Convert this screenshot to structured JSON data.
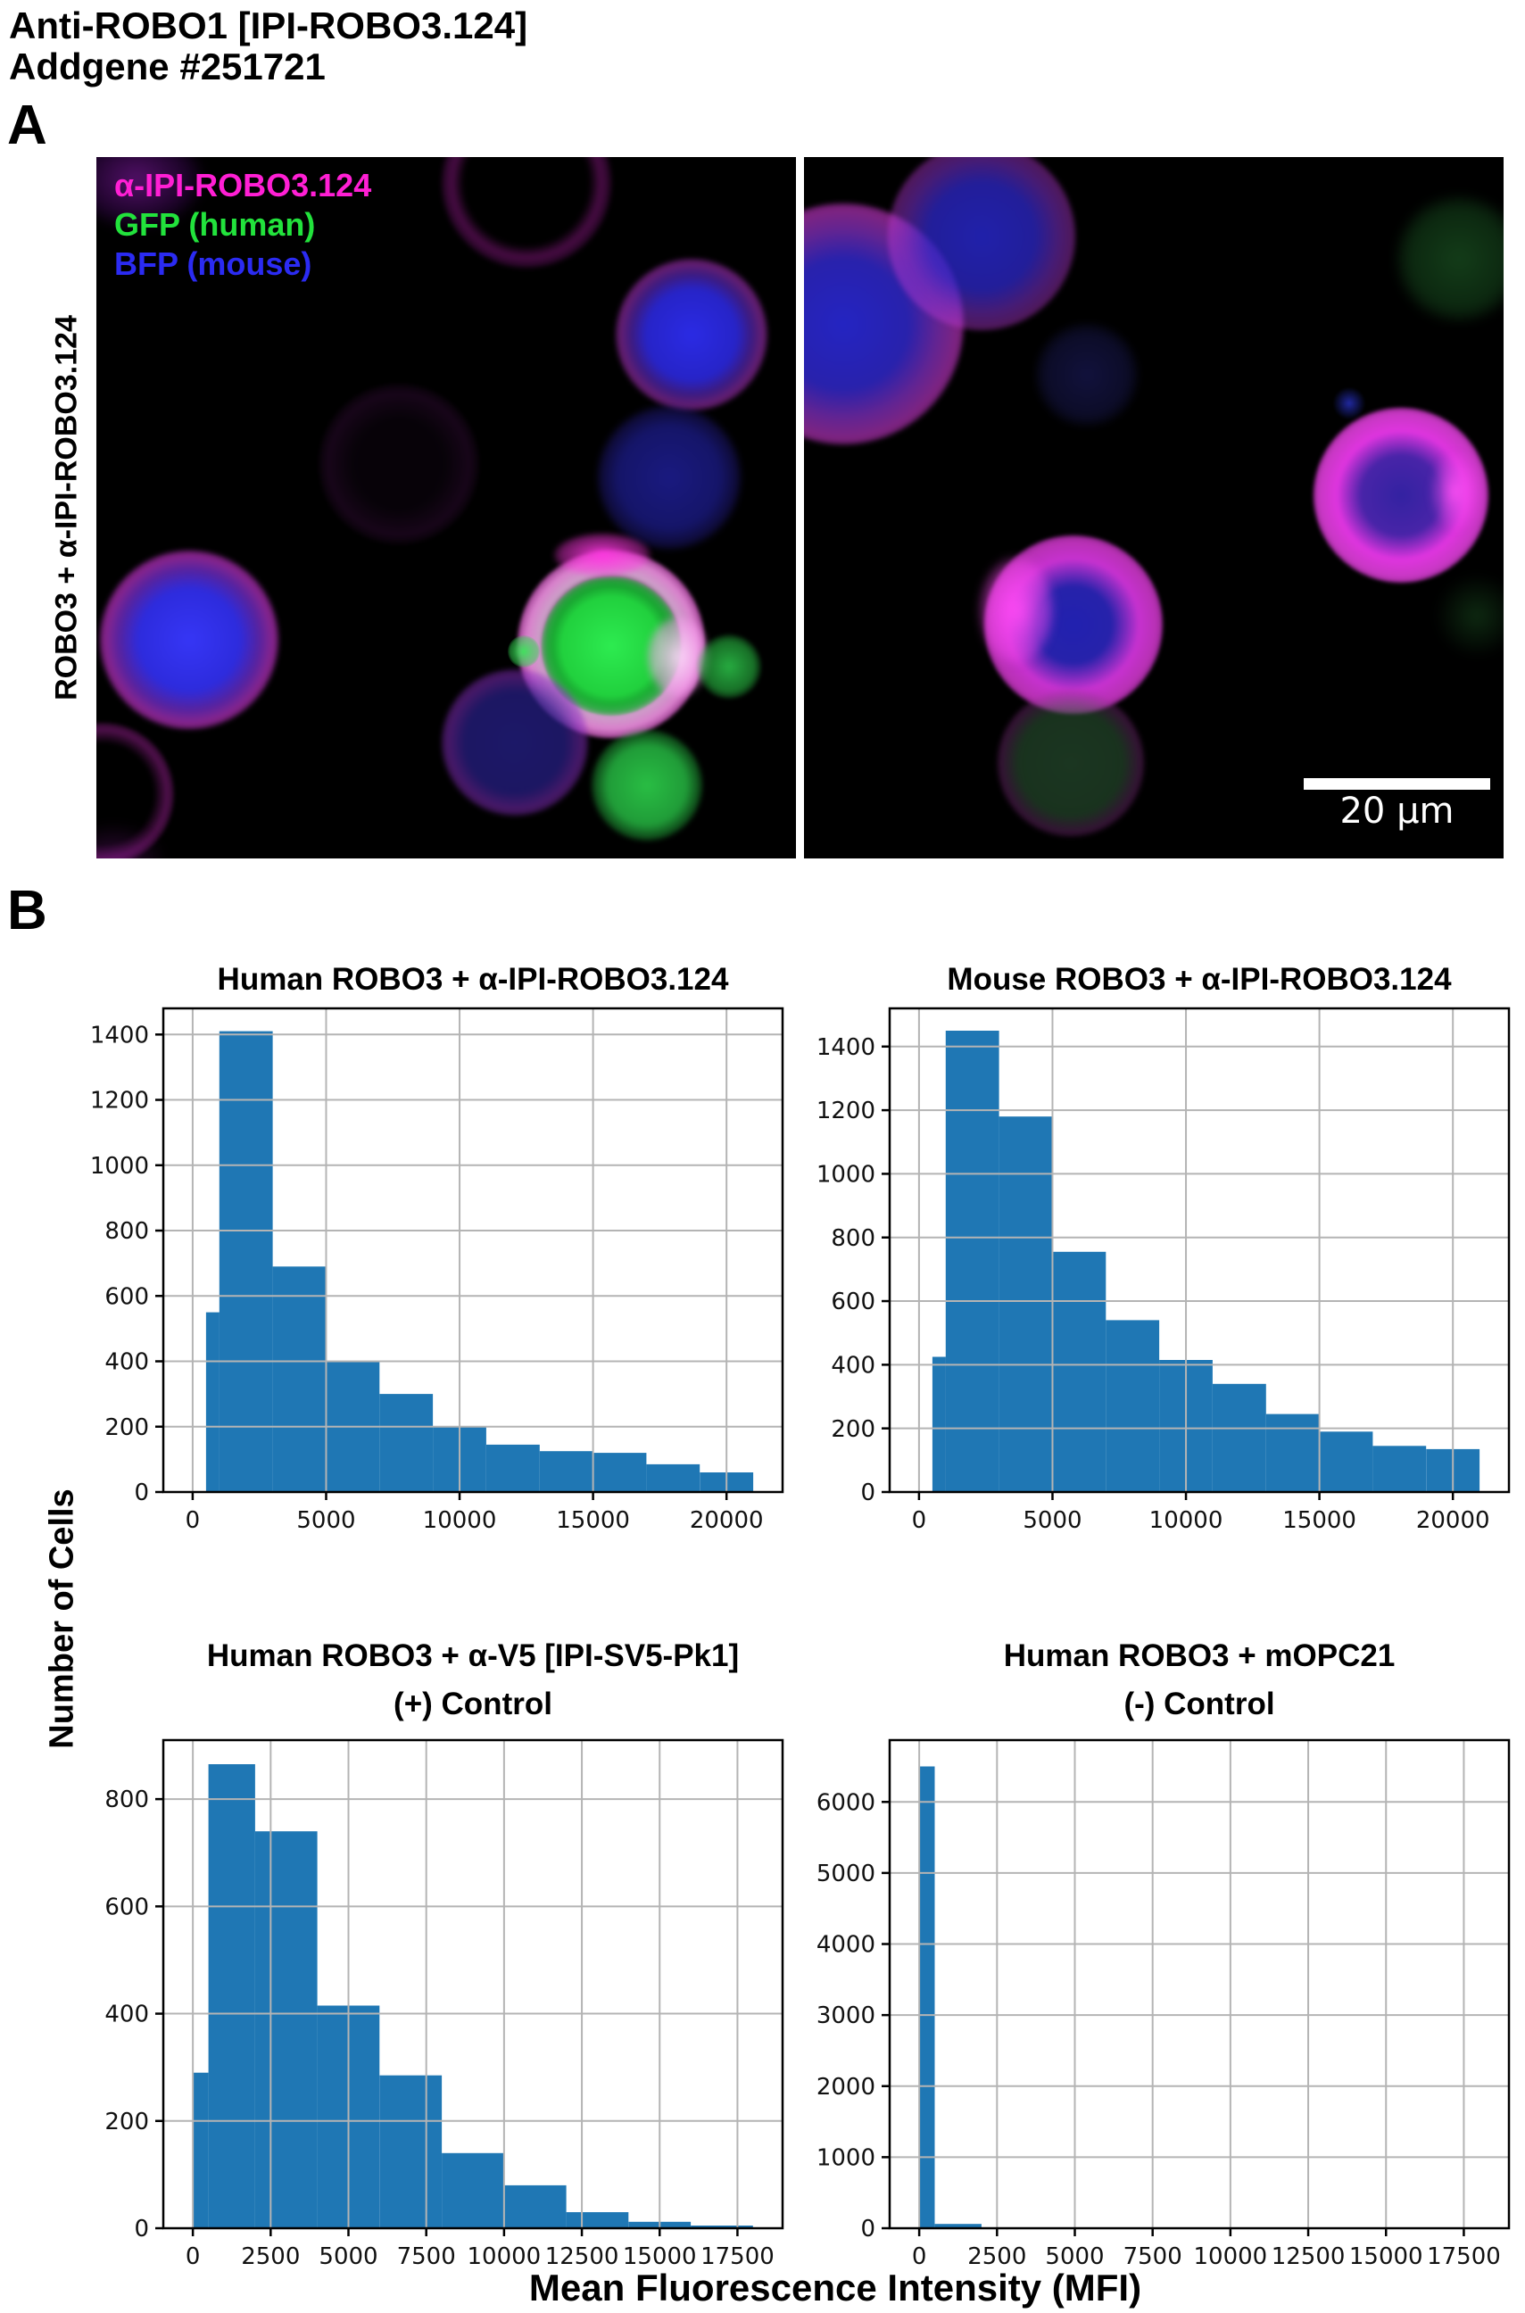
{
  "header": {
    "line1": "Anti-ROBO1 [IPI-ROBO3.124]",
    "line2": "Addgene #251721"
  },
  "panel_a": {
    "label": "A",
    "row_label": "ROBO3 + α-IPI-ROBO3.124",
    "legend": [
      {
        "text": "α-IPI-ROBO3.124",
        "color": "#ff1fd4"
      },
      {
        "text": "GFP (human)",
        "color": "#22e23c"
      },
      {
        "text": "BFP (mouse)",
        "color": "#2b2bf2"
      }
    ],
    "scale_bar_text": "20 µm"
  },
  "panel_b": {
    "label": "B",
    "ylabel": "Number of Cells",
    "xlabel": "Mean Fluorescence Intensity (MFI)"
  },
  "colors": {
    "bar": "#1f77b4",
    "grid": "#b4b4b4",
    "frame": "#000000",
    "tick_label": "#111111"
  },
  "chart_data": [
    {
      "type": "bar",
      "title": "Human ROBO3 + α-IPI-ROBO3.124",
      "xlabel": "Mean Fluorescence Intensity (MFI)",
      "ylabel": "Number of Cells",
      "xlim": [
        -1100,
        22100
      ],
      "ylim": [
        0,
        1480
      ],
      "xticks": [
        0,
        5000,
        10000,
        15000,
        20000
      ],
      "yticks": [
        0,
        200,
        400,
        600,
        800,
        1000,
        1200,
        1400
      ],
      "grid": true,
      "bars": [
        [
          500,
          1000,
          550
        ],
        [
          1000,
          3000,
          1410
        ],
        [
          3000,
          5000,
          690
        ],
        [
          5000,
          7000,
          400
        ],
        [
          7000,
          9000,
          300
        ],
        [
          9000,
          11000,
          200
        ],
        [
          11000,
          13000,
          145
        ],
        [
          13000,
          15000,
          125
        ],
        [
          15000,
          17000,
          120
        ],
        [
          17000,
          19000,
          85
        ],
        [
          19000,
          21000,
          60
        ]
      ]
    },
    {
      "type": "bar",
      "title": "Mouse ROBO3 + α-IPI-ROBO3.124",
      "xlabel": "Mean Fluorescence Intensity (MFI)",
      "ylabel": "Number of Cells",
      "xlim": [
        -1100,
        22100
      ],
      "ylim": [
        0,
        1520
      ],
      "xticks": [
        0,
        5000,
        10000,
        15000,
        20000
      ],
      "yticks": [
        0,
        200,
        400,
        600,
        800,
        1000,
        1200,
        1400
      ],
      "grid": true,
      "bars": [
        [
          500,
          1000,
          425
        ],
        [
          1000,
          3000,
          1450
        ],
        [
          3000,
          5000,
          1180
        ],
        [
          5000,
          7000,
          755
        ],
        [
          7000,
          9000,
          540
        ],
        [
          9000,
          11000,
          415
        ],
        [
          11000,
          13000,
          340
        ],
        [
          13000,
          15000,
          245
        ],
        [
          15000,
          17000,
          190
        ],
        [
          17000,
          19000,
          145
        ],
        [
          19000,
          21000,
          135
        ]
      ]
    },
    {
      "type": "bar",
      "title": "Human ROBO3 + α-V5 [IPI-SV5-Pk1]",
      "title2": "(+) Control",
      "xlabel": "Mean Fluorescence Intensity (MFI)",
      "ylabel": "Number of Cells",
      "xlim": [
        -950,
        18950
      ],
      "ylim": [
        0,
        910
      ],
      "xticks": [
        0,
        2500,
        5000,
        7500,
        10000,
        12500,
        15000,
        17500
      ],
      "yticks": [
        0,
        200,
        400,
        600,
        800
      ],
      "grid": true,
      "bars": [
        [
          0,
          500,
          290
        ],
        [
          500,
          2000,
          865
        ],
        [
          2000,
          4000,
          740
        ],
        [
          4000,
          6000,
          415
        ],
        [
          6000,
          8000,
          285
        ],
        [
          8000,
          10000,
          140
        ],
        [
          10000,
          12000,
          80
        ],
        [
          12000,
          14000,
          30
        ],
        [
          14000,
          16000,
          12
        ],
        [
          16000,
          18000,
          5
        ]
      ]
    },
    {
      "type": "bar",
      "title": "Human ROBO3 + mOPC21",
      "title2": "(-) Control",
      "xlabel": "Mean Fluorescence Intensity (MFI)",
      "ylabel": "Number of Cells",
      "xlim": [
        -950,
        18950
      ],
      "ylim": [
        0,
        6870
      ],
      "xticks": [
        0,
        2500,
        5000,
        7500,
        10000,
        12500,
        15000,
        17500
      ],
      "yticks": [
        0,
        1000,
        2000,
        3000,
        4000,
        5000,
        6000
      ],
      "grid": true,
      "bars": [
        [
          0,
          500,
          6500
        ],
        [
          500,
          2000,
          60
        ]
      ]
    }
  ]
}
